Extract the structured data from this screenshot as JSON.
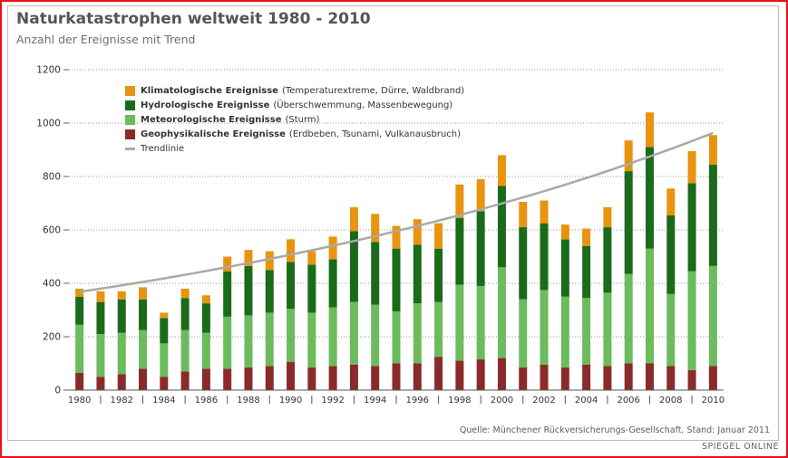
{
  "page": {
    "source": "Quelle: Münchener Rückversicherungs-Gesellschaft, Stand: Januar 2011",
    "brand": "SPIEGEL ONLINE"
  },
  "chart_data": {
    "type": "bar",
    "stacked": true,
    "title": "Naturkatastrophen weltweit 1980 - 2010",
    "subtitle": "Anzahl der Ereignisse mit Trend",
    "xlabel": "",
    "ylabel": "",
    "ylim": [
      0,
      1200
    ],
    "yticks": [
      0,
      200,
      400,
      600,
      800,
      1000,
      1200
    ],
    "ytick_labels": [
      "0",
      "200",
      "400",
      "600",
      "800",
      "1000",
      "1200"
    ],
    "grid": true,
    "legend_position": "top-left",
    "categories": [
      "1980",
      "1981",
      "1982",
      "1983",
      "1984",
      "1985",
      "1986",
      "1987",
      "1988",
      "1989",
      "1990",
      "1991",
      "1992",
      "1993",
      "1994",
      "1995",
      "1996",
      "1997",
      "1998",
      "1999",
      "2000",
      "2001",
      "2002",
      "2003",
      "2004",
      "2005",
      "2006",
      "2007",
      "2008",
      "2009",
      "2010"
    ],
    "xtick_labels": [
      "1980",
      "1982",
      "1984",
      "1986",
      "1988",
      "1990",
      "1992",
      "1994",
      "1996",
      "1998",
      "2000",
      "2002",
      "2004",
      "2006",
      "2008",
      "2010"
    ],
    "series": [
      {
        "name": "Geophysikalische Ereignisse",
        "description": "(Erdbeben, Tsunami, Vulkanausbruch)",
        "color": "#8b2a2a",
        "values": [
          65,
          50,
          60,
          80,
          50,
          70,
          80,
          80,
          85,
          90,
          105,
          85,
          90,
          95,
          90,
          100,
          100,
          125,
          110,
          115,
          120,
          85,
          95,
          85,
          95,
          90,
          100,
          100,
          90,
          75,
          90
        ]
      },
      {
        "name": "Meteorologische Ereignisse",
        "description": "(Sturm)",
        "color": "#6cbb5c",
        "values": [
          180,
          160,
          155,
          145,
          125,
          155,
          135,
          195,
          195,
          200,
          200,
          205,
          220,
          235,
          230,
          195,
          225,
          205,
          285,
          275,
          340,
          255,
          280,
          265,
          250,
          275,
          335,
          430,
          270,
          370,
          375
        ]
      },
      {
        "name": "Hydrologische Ereignisse",
        "description": "(Überschwemmung, Massenbewegung)",
        "color": "#1a6b1a",
        "values": [
          105,
          120,
          125,
          115,
          95,
          120,
          110,
          170,
          185,
          160,
          175,
          180,
          180,
          265,
          235,
          235,
          220,
          200,
          250,
          280,
          305,
          270,
          250,
          215,
          195,
          245,
          385,
          380,
          295,
          330,
          380
        ]
      },
      {
        "name": "Klimatologische Ereignisse",
        "description": "(Temperaturextreme, Dürre, Waldbrand)",
        "color": "#e8940f",
        "values": [
          30,
          40,
          30,
          45,
          20,
          35,
          30,
          55,
          60,
          70,
          85,
          50,
          85,
          90,
          105,
          85,
          95,
          95,
          125,
          120,
          115,
          95,
          85,
          55,
          65,
          75,
          115,
          130,
          100,
          120,
          110
        ]
      }
    ],
    "trend": {
      "name": "Trendlinie",
      "color": "#a9a9a9",
      "start": 368,
      "end": 963
    }
  }
}
